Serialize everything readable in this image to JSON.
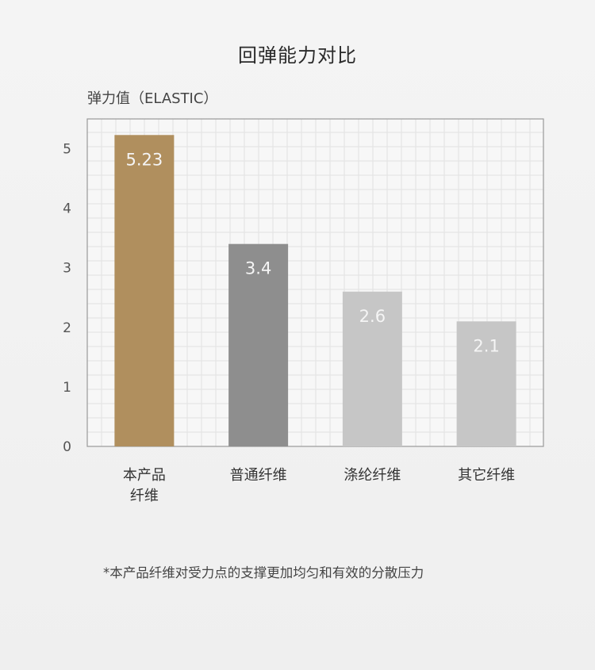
{
  "page": {
    "title": "回弹能力对比",
    "footnote": "*本产品纤维对受力点的支撑更加均匀和有效的分散压力"
  },
  "chart_data": {
    "type": "bar",
    "title": "回弹能力对比",
    "ylabel": "弹力值（ELASTIC）",
    "xlabel": "",
    "ylim": [
      0,
      5.5
    ],
    "yticks": [
      0,
      1,
      2,
      3,
      4,
      5
    ],
    "grid": true,
    "categories": [
      "本产品\n纤维",
      "普通纤维",
      "涤纶纤维",
      "其它纤维"
    ],
    "values": [
      5.23,
      3.4,
      2.6,
      2.1
    ],
    "data_labels": [
      "5.23",
      "3.4",
      "2.6",
      "2.1"
    ],
    "colors": [
      "#b08f5e",
      "#8e8e8e",
      "#c6c6c6",
      "#c6c6c6"
    ],
    "label_color": "#f5f5f5",
    "grid_color": "#e2e2e2",
    "axis_color": "#999999"
  }
}
